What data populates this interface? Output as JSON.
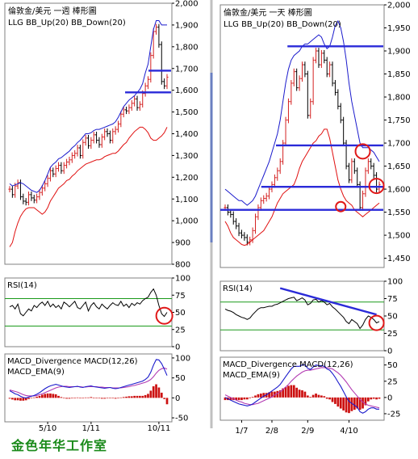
{
  "footer": "金色年华工作室",
  "colors": {
    "price": "#000000",
    "up_candle": "#d42020",
    "bb_up": "#1a1acc",
    "bb_down": "#e01010",
    "level_line": "#2a2ad8",
    "rsi_line": "#000000",
    "rsi_guides": "#1a9a1a",
    "macd_line": "#1a1acc",
    "macd_ema": "#b23ab2",
    "macd_hist": "#cc1010",
    "marker": "#e01818",
    "trend": "#2a2ad8"
  },
  "chart_data": [
    {
      "id": "weekly",
      "type": "line",
      "title": "倫敦金/美元 一週 棒形圖",
      "legend": "LLG  BB_Up(20)  BB_Down(20)",
      "price": {
        "yticks": [
          800,
          900,
          1000,
          1100,
          1200,
          1300,
          1400,
          1500,
          1600,
          1700,
          1800,
          1900,
          2000
        ],
        "tick_labels": [
          "800",
          "900",
          "1,000",
          "1,100",
          "1,200",
          "1,300",
          "1,400",
          "1,500",
          "1,600",
          "1,700",
          "1,800",
          "1,900",
          "2,000"
        ],
        "ylim": [
          800,
          2000
        ],
        "close": [
          1145,
          1120,
          1160,
          1175,
          1110,
          1090,
          1085,
          1120,
          1105,
          1095,
          1110,
          1130,
          1150,
          1170,
          1195,
          1230,
          1215,
          1240,
          1255,
          1230,
          1255,
          1270,
          1280,
          1300,
          1310,
          1335,
          1300,
          1360,
          1380,
          1345,
          1370,
          1395,
          1370,
          1350,
          1385,
          1410,
          1400,
          1370,
          1410,
          1420,
          1445,
          1490,
          1510,
          1505,
          1520,
          1540,
          1560,
          1520,
          1535,
          1585,
          1620,
          1650,
          1760,
          1870,
          1890,
          1810,
          1640,
          1620,
          1660
        ],
        "bb_up": [
          1170,
          1160,
          1165,
          1170,
          1175,
          1170,
          1160,
          1150,
          1140,
          1135,
          1130,
          1140,
          1160,
          1185,
          1215,
          1245,
          1260,
          1270,
          1285,
          1290,
          1300,
          1310,
          1320,
          1335,
          1345,
          1360,
          1370,
          1385,
          1400,
          1400,
          1405,
          1415,
          1420,
          1420,
          1425,
          1430,
          1435,
          1440,
          1445,
          1455,
          1475,
          1500,
          1525,
          1540,
          1555,
          1565,
          1575,
          1590,
          1605,
          1630,
          1680,
          1720,
          1800,
          1880,
          1920,
          1920,
          1900,
          1900,
          1900
        ],
        "bb_down": [
          880,
          900,
          950,
          990,
          1020,
          1040,
          1055,
          1060,
          1060,
          1060,
          1050,
          1040,
          1030,
          1040,
          1060,
          1090,
          1110,
          1130,
          1150,
          1160,
          1170,
          1185,
          1190,
          1205,
          1215,
          1230,
          1240,
          1250,
          1260,
          1265,
          1270,
          1275,
          1280,
          1280,
          1285,
          1295,
          1300,
          1305,
          1310,
          1310,
          1320,
          1335,
          1350,
          1360,
          1380,
          1395,
          1410,
          1420,
          1430,
          1430,
          1420,
          1405,
          1380,
          1370,
          1370,
          1380,
          1390,
          1405,
          1430
        ],
        "levels": [
          {
            "y": 1590,
            "x0": 0.72,
            "x1": 0.995
          },
          {
            "y": 1690,
            "x0": 0.86,
            "x1": 0.995
          }
        ]
      },
      "x_ticks": [
        {
          "i": 14,
          "label": "5/10"
        },
        {
          "i": 30,
          "label": "1/11"
        },
        {
          "i": 55,
          "label": "10/11"
        }
      ],
      "rsi": {
        "title": "RSI(14)",
        "yticks": [
          0,
          25,
          50,
          75,
          100
        ],
        "ylim": [
          0,
          100
        ],
        "guides": [
          30,
          70
        ],
        "values": [
          58,
          60,
          55,
          62,
          48,
          45,
          50,
          55,
          52,
          60,
          57,
          62,
          65,
          60,
          66,
          58,
          62,
          57,
          60,
          55,
          65,
          62,
          58,
          62,
          66,
          57,
          55,
          60,
          65,
          52,
          60,
          64,
          58,
          55,
          62,
          58,
          55,
          60,
          64,
          61,
          60,
          66,
          59,
          62,
          57,
          63,
          60,
          64,
          62,
          67,
          70,
          72,
          79,
          84,
          75,
          60,
          48,
          44,
          50
        ]
      },
      "macd": {
        "title": "MACD_Divergence  MACD(12,26)",
        "subtitle": "MACD_EMA(9)",
        "yticks": [
          -50,
          0,
          50,
          100
        ],
        "ylim": [
          -60,
          110
        ],
        "macd_line": [
          18,
          14,
          10,
          8,
          4,
          1,
          0,
          2,
          4,
          6,
          9,
          13,
          18,
          23,
          27,
          30,
          32,
          34,
          32,
          30,
          28,
          27,
          26,
          27,
          28,
          29,
          27,
          26,
          28,
          29,
          30,
          28,
          27,
          26,
          25,
          24,
          25,
          26,
          24,
          23,
          24,
          26,
          28,
          30,
          32,
          34,
          36,
          38,
          40,
          42,
          46,
          52,
          64,
          82,
          96,
          95,
          86,
          72,
          56
        ],
        "ema_line": [
          20,
          18,
          16,
          14,
          11,
          8,
          6,
          5,
          5,
          5,
          6,
          8,
          10,
          13,
          16,
          19,
          22,
          25,
          27,
          28,
          29,
          29,
          28,
          28,
          28,
          28,
          28,
          27,
          27,
          28,
          28,
          28,
          28,
          27,
          27,
          26,
          26,
          26,
          25,
          25,
          25,
          25,
          26,
          27,
          28,
          30,
          31,
          33,
          35,
          37,
          39,
          42,
          46,
          53,
          62,
          69,
          73,
          75,
          72
        ],
        "hist": [
          -2,
          -4,
          -6,
          -6,
          -7,
          -7,
          -6,
          -3,
          -1,
          1,
          3,
          5,
          8,
          10,
          11,
          11,
          10,
          9,
          5,
          2,
          -1,
          -2,
          -2,
          -1,
          0,
          1,
          -1,
          -1,
          1,
          1,
          2,
          0,
          -1,
          -1,
          -2,
          -2,
          -1,
          0,
          -1,
          -2,
          -1,
          1,
          2,
          3,
          4,
          4,
          5,
          5,
          5,
          5,
          7,
          10,
          18,
          29,
          34,
          26,
          13,
          -3,
          -16
        ]
      }
    },
    {
      "id": "daily",
      "type": "line",
      "title": "倫敦金/美元 一天 棒形圖",
      "legend": "LLG  BB_Up(20)  BB_Down(20)",
      "price": {
        "yticks": [
          1450,
          1500,
          1550,
          1600,
          1650,
          1700,
          1750,
          1800,
          1850,
          1900,
          1950,
          2000
        ],
        "tick_labels": [
          "1,450",
          "1,500",
          "1,550",
          "1,600",
          "1,650",
          "1,700",
          "1,750",
          "1,800",
          "1,850",
          "1,900",
          "1,950",
          "2,000"
        ],
        "ylim": [
          1430,
          2000
        ],
        "close": [
          1560,
          1550,
          1545,
          1530,
          1520,
          1505,
          1500,
          1495,
          1485,
          1490,
          1510,
          1540,
          1560,
          1575,
          1580,
          1585,
          1600,
          1610,
          1625,
          1640,
          1660,
          1700,
          1750,
          1790,
          1830,
          1855,
          1820,
          1840,
          1870,
          1850,
          1760,
          1790,
          1880,
          1900,
          1870,
          1895,
          1880,
          1850,
          1870,
          1830,
          1810,
          1780,
          1750,
          1700,
          1650,
          1620,
          1660,
          1640,
          1610,
          1560,
          1590,
          1640,
          1660,
          1650,
          1630,
          1600,
          1610
        ],
        "bb_up": [
          1600,
          1595,
          1590,
          1585,
          1580,
          1575,
          1575,
          1570,
          1565,
          1570,
          1575,
          1585,
          1600,
          1615,
          1630,
          1645,
          1660,
          1680,
          1700,
          1720,
          1750,
          1790,
          1830,
          1860,
          1880,
          1890,
          1895,
          1900,
          1910,
          1915,
          1915,
          1920,
          1925,
          1930,
          1935,
          1930,
          1915,
          1905,
          1910,
          1930,
          1955,
          1965,
          1950,
          1920,
          1880,
          1830,
          1790,
          1760,
          1730,
          1700,
          1690,
          1690,
          1690,
          1685,
          1680,
          1670,
          1660
        ],
        "bb_down": [
          1530,
          1520,
          1505,
          1495,
          1490,
          1485,
          1480,
          1478,
          1480,
          1485,
          1490,
          1495,
          1500,
          1505,
          1510,
          1520,
          1530,
          1540,
          1555,
          1570,
          1580,
          1590,
          1595,
          1600,
          1605,
          1610,
          1625,
          1645,
          1660,
          1670,
          1680,
          1690,
          1700,
          1705,
          1715,
          1720,
          1730,
          1730,
          1710,
          1680,
          1650,
          1620,
          1600,
          1585,
          1575,
          1570,
          1565,
          1555,
          1550,
          1545,
          1540,
          1545,
          1550,
          1555,
          1560,
          1565,
          1570
        ],
        "levels": [
          {
            "y": 1555,
            "x0": 0.0,
            "x1": 0.995
          },
          {
            "y": 1605,
            "x0": 0.25,
            "x1": 0.995
          },
          {
            "y": 1695,
            "x0": 0.34,
            "x1": 0.995
          },
          {
            "y": 1910,
            "x0": 0.41,
            "x1": 0.995
          }
        ]
      },
      "x_ticks": [
        {
          "i": 6,
          "label": "1/7"
        },
        {
          "i": 17,
          "label": "2/8"
        },
        {
          "i": 30,
          "label": "2/9"
        },
        {
          "i": 45,
          "label": "4/10"
        }
      ],
      "rsi": {
        "title": "RSI(14)",
        "yticks": [
          0,
          25,
          50,
          75,
          100
        ],
        "ylim": [
          0,
          100
        ],
        "guides": [
          30,
          70
        ],
        "values": [
          60,
          58,
          57,
          55,
          52,
          50,
          48,
          47,
          45,
          47,
          52,
          56,
          60,
          62,
          62,
          63,
          64,
          64,
          66,
          67,
          69,
          71,
          73,
          75,
          76,
          77,
          72,
          74,
          76,
          73,
          66,
          68,
          73,
          74,
          70,
          72,
          70,
          66,
          68,
          63,
          60,
          56,
          52,
          48,
          42,
          39,
          45,
          42,
          39,
          32,
          37,
          45,
          50,
          48,
          45,
          40,
          42
        ],
        "trend": {
          "i0": 20,
          "v0": 90,
          "i1": 55,
          "v1": 52
        }
      },
      "macd": {
        "title": "MACD_Divergence  MACD(12,26)",
        "subtitle": "MACD_EMA(9)",
        "yticks": [
          -25,
          0,
          25,
          50
        ],
        "ylim": [
          -35,
          62
        ],
        "macd_line": [
          0,
          -2,
          -4,
          -6,
          -8,
          -10,
          -11,
          -12,
          -13,
          -12,
          -10,
          -7,
          -4,
          -1,
          2,
          4,
          7,
          10,
          13,
          16,
          20,
          26,
          32,
          38,
          44,
          48,
          48,
          48,
          50,
          50,
          45,
          43,
          47,
          50,
          49,
          49,
          48,
          44,
          42,
          37,
          31,
          24,
          17,
          9,
          1,
          -6,
          -9,
          -12,
          -15,
          -22,
          -24,
          -22,
          -18,
          -16,
          -16,
          -18,
          -18
        ],
        "ema_line": [
          4,
          2,
          0,
          -2,
          -4,
          -6,
          -7,
          -9,
          -10,
          -11,
          -11,
          -10,
          -9,
          -7,
          -5,
          -3,
          -1,
          1,
          4,
          6,
          9,
          12,
          16,
          20,
          25,
          29,
          33,
          36,
          39,
          41,
          42,
          42,
          43,
          44,
          45,
          46,
          46,
          46,
          45,
          44,
          41,
          38,
          34,
          29,
          24,
          18,
          12,
          7,
          2,
          -3,
          -7,
          -10,
          -12,
          -13,
          -14,
          -15,
          -16
        ],
        "hist": [
          -4,
          -4,
          -4,
          -4,
          -4,
          -4,
          -4,
          -3,
          -3,
          -1,
          1,
          3,
          5,
          6,
          7,
          7,
          8,
          9,
          9,
          10,
          11,
          14,
          16,
          18,
          19,
          19,
          15,
          12,
          11,
          9,
          3,
          1,
          4,
          6,
          4,
          3,
          2,
          -2,
          -3,
          -7,
          -10,
          -14,
          -17,
          -20,
          -23,
          -24,
          -21,
          -19,
          -17,
          -19,
          -17,
          -12,
          -6,
          -3,
          -2,
          -3,
          -2
        ]
      }
    }
  ]
}
